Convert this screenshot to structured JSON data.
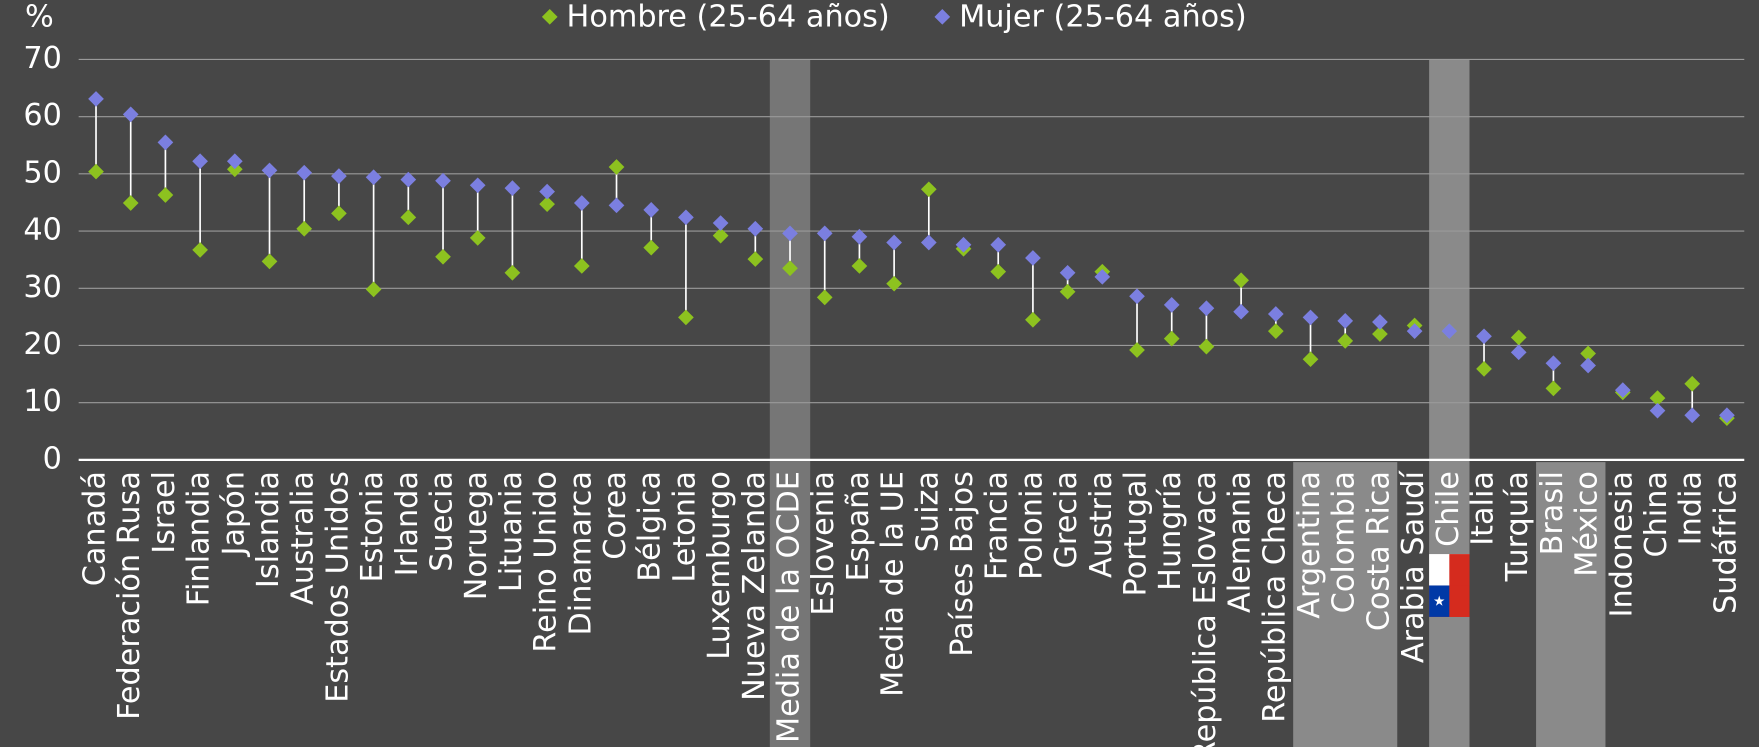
{
  "chart_data": {
    "type": "dot",
    "y_label": "%",
    "categories": [
      "Canadá",
      "Federación Rusa",
      "Israel",
      "Finlandia",
      "Japón",
      "Islandia",
      "Australia",
      "Estados Unidos",
      "Estonia",
      "Irlanda",
      "Suecia",
      "Noruega",
      "Lituania",
      "Reino Unido",
      "Dinamarca",
      "Corea",
      "Bélgica",
      "Letonia",
      "Luxemburgo",
      "Nueva Zelanda",
      "Media de la OCDE",
      "Eslovenia",
      "España",
      "Media de la UE",
      "Suiza",
      "Países Bajos",
      "Francia",
      "Polonia",
      "Grecia",
      "Austria",
      "Portugal",
      "Hungría",
      "República Eslovaca",
      "Alemania",
      "República Checa",
      "Argentina",
      "Colombia",
      "Costa Rica",
      "Arabia Saudí",
      "Chile",
      "Italia",
      "Turquía",
      "Brasil",
      "México",
      "Indonesia",
      "China",
      "India",
      "Sudáfrica"
    ],
    "series": [
      {
        "name": "Hombre (25-64 años)",
        "color": "#8dc21f",
        "values": [
          50.4,
          44.9,
          46.3,
          36.7,
          50.8,
          34.7,
          40.4,
          43.1,
          29.8,
          42.4,
          35.5,
          38.8,
          32.7,
          44.7,
          33.9,
          51.2,
          37.1,
          24.9,
          39.2,
          35.1,
          33.5,
          28.4,
          33.9,
          30.8,
          47.3,
          36.9,
          32.9,
          24.5,
          29.4,
          32.9,
          19.2,
          21.2,
          19.8,
          31.4,
          22.5,
          17.6,
          20.8,
          22.0,
          23.5,
          22.5,
          15.9,
          21.4,
          12.5,
          18.6,
          11.8,
          10.8,
          13.3,
          7.3
        ]
      },
      {
        "name": "Mujer (25-64 años)",
        "color": "#7b7fe0",
        "values": [
          63.1,
          60.4,
          55.5,
          52.2,
          52.2,
          50.6,
          50.2,
          49.6,
          49.4,
          49.0,
          48.8,
          48.0,
          47.5,
          46.9,
          44.9,
          44.5,
          43.7,
          42.4,
          41.4,
          40.4,
          39.6,
          39.6,
          39.0,
          38.0,
          38.0,
          37.6,
          37.6,
          35.3,
          32.7,
          32.0,
          28.6,
          27.1,
          26.5,
          25.9,
          25.5,
          24.9,
          24.3,
          24.1,
          22.5,
          22.5,
          21.6,
          18.8,
          16.9,
          16.5,
          12.2,
          8.6,
          7.8,
          7.8
        ]
      }
    ],
    "ylim": [
      0,
      70
    ],
    "yticks": [
      0,
      10,
      20,
      30,
      40,
      50,
      60,
      70
    ],
    "grid": true
  }
}
